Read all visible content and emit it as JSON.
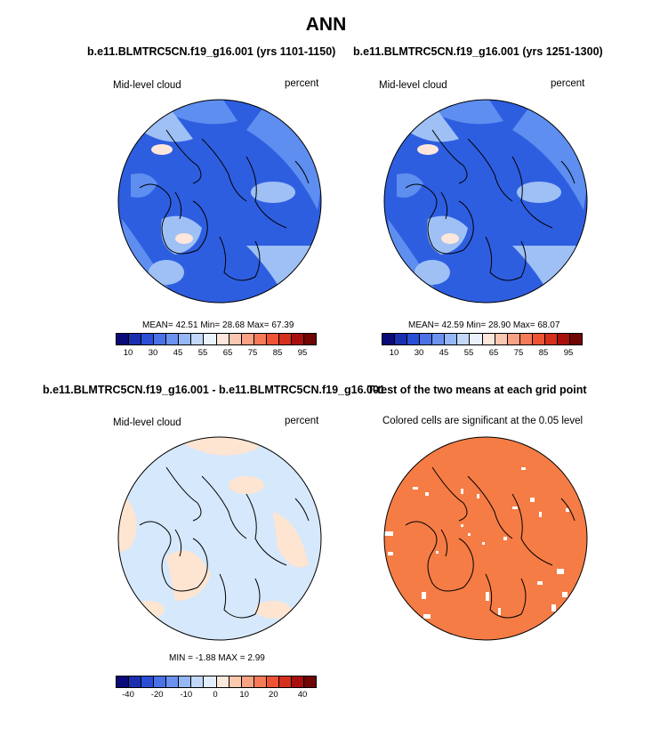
{
  "title": "ANN",
  "panels": {
    "p1": {
      "case": "b.e11.BLMTRC5CN.f19_g16.001 (yrs 1101-1150)",
      "label": "Mid-level cloud",
      "units": "percent",
      "stats": "MEAN=  42.51  Min=  28.68  Max=  67.39"
    },
    "p2": {
      "case": "b.e11.BLMTRC5CN.f19_g16.001 (yrs 1251-1300)",
      "label": "Mid-level cloud",
      "units": "percent",
      "stats": "MEAN=  42.59  Min=  28.90  Max=  68.07"
    },
    "p3": {
      "case": "b.e11.BLMTRC5CN.f19_g16.001 - b.e11.BLMTRC5CN.f19_g16.001",
      "label": "Mid-level cloud",
      "units": "percent",
      "stats": "MIN =  -1.88 MAX =   2.99"
    },
    "p4": {
      "case": "T-test of the two means at each grid point",
      "label": "Colored cells are significant at the 0.05 level"
    }
  },
  "colorbars": {
    "abs": {
      "ticks": [
        "10",
        "30",
        "45",
        "55",
        "65",
        "75",
        "85",
        "95"
      ],
      "colors": [
        "#0a0a78",
        "#1a2fb0",
        "#2a4fd6",
        "#4a72e6",
        "#6b92ef",
        "#96b7f5",
        "#c3d8f8",
        "#eaf3fd",
        "#fde6dc",
        "#fbc7b0",
        "#f8a184",
        "#f57a58",
        "#ee5433",
        "#d4301b",
        "#a80f0c",
        "#700505"
      ]
    },
    "diff": {
      "ticks": [
        "-40",
        "-20",
        "-10",
        "0",
        "10",
        "20",
        "40"
      ],
      "colors": [
        "#0a0a78",
        "#1a2fb0",
        "#2a4fd6",
        "#4a72e6",
        "#6b92ef",
        "#96b7f5",
        "#c3d8f8",
        "#e3eefc",
        "#fde9dc",
        "#fbc9ae",
        "#f8a383",
        "#f57c57",
        "#ee5433",
        "#d4301b",
        "#a80f0c",
        "#700505"
      ]
    }
  },
  "map_colors": {
    "ocean_low": "#2e5ee0",
    "mid": "#5d8ef0",
    "light": "#9ec0f5",
    "pale": "#d4e5fb",
    "pos_pale": "#fde5d2",
    "neg_pale": "#d6e8fb",
    "sig": "#f57c45"
  }
}
